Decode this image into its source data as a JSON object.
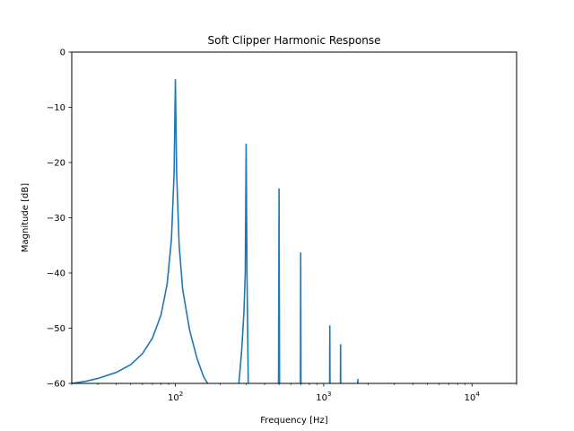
{
  "chart_data": {
    "type": "line",
    "title": "Soft Clipper Harmonic Response",
    "xlabel": "Frequency [Hz]",
    "ylabel": "Magnitude [dB]",
    "xscale": "log",
    "xlim": [
      20,
      20000
    ],
    "ylim": [
      -60,
      0
    ],
    "grid": false,
    "line_color": "#1f77b4",
    "x_ticks": [
      {
        "value": 100,
        "base": "10",
        "exp": "2"
      },
      {
        "value": 1000,
        "base": "10",
        "exp": "3"
      },
      {
        "value": 10000,
        "base": "10",
        "exp": "4"
      }
    ],
    "y_ticks": [
      {
        "value": 0,
        "label": "0"
      },
      {
        "value": -10,
        "label": "−10"
      },
      {
        "value": -20,
        "label": "−20"
      },
      {
        "value": -30,
        "label": "−30"
      },
      {
        "value": -40,
        "label": "−40"
      },
      {
        "value": -50,
        "label": "−50"
      },
      {
        "value": -60,
        "label": "−60"
      }
    ],
    "series": [
      {
        "x": [
          20,
          25,
          30,
          40,
          50,
          60,
          70,
          80,
          88,
          94,
          98,
          100,
          102,
          106,
          112,
          125,
          140,
          155,
          165
        ],
        "y": [
          -60,
          -59.6,
          -59.1,
          -58,
          -56.6,
          -54.6,
          -51.8,
          -47.6,
          -42,
          -34,
          -22,
          -5,
          -22,
          -35,
          -43,
          -50.5,
          -55.5,
          -58.8,
          -60
        ],
        "note_segment": 1
      },
      {
        "x": [
          268,
          280,
          290,
          296,
          300,
          304,
          310
        ],
        "y": [
          -60,
          -54,
          -47,
          -40,
          -16.7,
          -40,
          -60
        ]
      },
      {
        "x": [
          496,
          500,
          504
        ],
        "y": [
          -60,
          -24.8,
          -60
        ]
      },
      {
        "x": [
          697,
          700,
          703
        ],
        "y": [
          -60,
          -36.4,
          -60
        ]
      },
      {
        "x": [
          1097,
          1100,
          1103
        ],
        "y": [
          -60,
          -49.6,
          -60
        ]
      },
      {
        "x": [
          1297,
          1300,
          1303
        ],
        "y": [
          -60,
          -53,
          -60
        ]
      },
      {
        "x": [
          1697,
          1700,
          1703
        ],
        "y": [
          -60,
          -59.3,
          -60
        ]
      }
    ]
  }
}
